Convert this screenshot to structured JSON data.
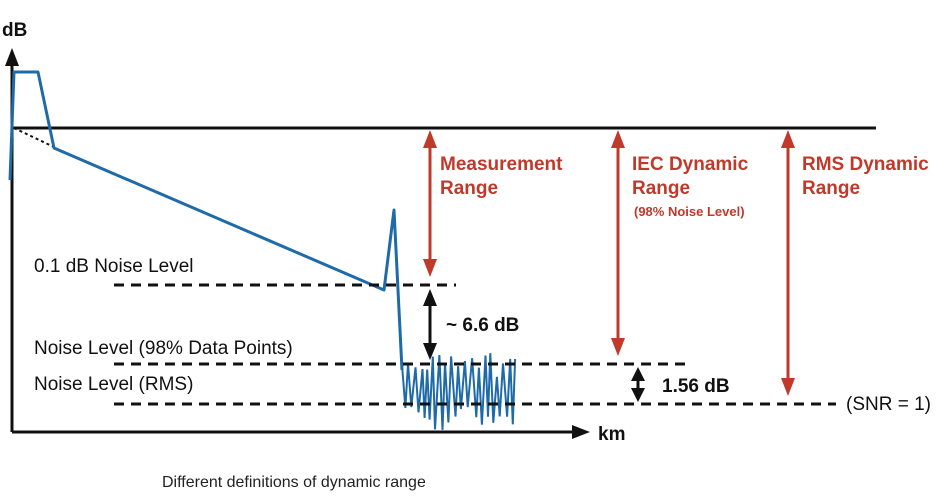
{
  "colors": {
    "trace": "#1f6aa8",
    "measurement_arrow": "#c0392b",
    "neutral": "#111111"
  },
  "axes": {
    "y_label": "dB",
    "x_label": "km"
  },
  "annotations": {
    "measurement_range": [
      "Measurement",
      "Range"
    ],
    "iec_dynamic_range": [
      "IEC Dynamic",
      "Range"
    ],
    "iec_note": "(98% Noise Level)",
    "rms_dynamic_range": [
      "RMS Dynamic",
      "Range"
    ],
    "noise_01db": "0.1 dB Noise Level",
    "noise_98": "Noise Level (98% Data Points)",
    "noise_rms": "Noise Level (RMS)",
    "delta_66": "~ 6.6 dB",
    "delta_156": "1.56 dB",
    "snr": "(SNR = 1)"
  },
  "caption": "Different definitions of dynamic range"
}
